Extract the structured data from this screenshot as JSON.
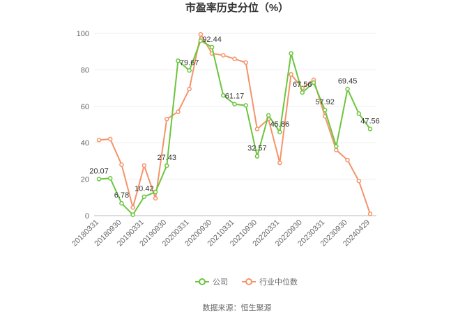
{
  "chart_data": {
    "type": "line",
    "title": "市盈率历史分位（%）",
    "source": "数据来源：恒生聚源",
    "categories": [
      "20180331",
      null,
      "20180930",
      null,
      "20190331",
      null,
      "20190930",
      null,
      "20200331",
      null,
      "20200930",
      null,
      "20210331",
      null,
      "20210930",
      null,
      "20220331",
      null,
      "20220930",
      null,
      "20230331",
      null,
      "20230930",
      null,
      "20240429"
    ],
    "series": [
      {
        "name": "公司",
        "color": "#6cc53e",
        "values": [
          20.07,
          20.5,
          6.78,
          0.5,
          10.42,
          13,
          27.43,
          85,
          79.67,
          96,
          92.44,
          66,
          61.17,
          60.5,
          32.57,
          55,
          45.86,
          89,
          67.56,
          73,
          57.92,
          38,
          69.45,
          56,
          47.56
        ],
        "value_labels": [
          "20.07",
          null,
          "6.78",
          null,
          "10.42",
          null,
          "27.43",
          null,
          "79.67",
          null,
          "92.44",
          null,
          "61.17",
          null,
          "32.57",
          null,
          "45.86",
          null,
          "67.56",
          null,
          "57.92",
          null,
          "69.45",
          null,
          "47.56"
        ]
      },
      {
        "name": "行业中位数",
        "color": "#f4946a",
        "values": [
          41.5,
          42,
          28,
          4.5,
          27.5,
          9.5,
          53,
          57,
          69.5,
          99.5,
          89,
          88,
          86,
          84,
          47.5,
          53,
          29,
          77.5,
          70,
          74.5,
          54.5,
          36,
          30.5,
          19,
          1
        ]
      }
    ],
    "ylim": [
      0,
      100
    ],
    "yticks": [
      0,
      20,
      40,
      60,
      80,
      100
    ],
    "grid": true,
    "legend": "bottom"
  }
}
